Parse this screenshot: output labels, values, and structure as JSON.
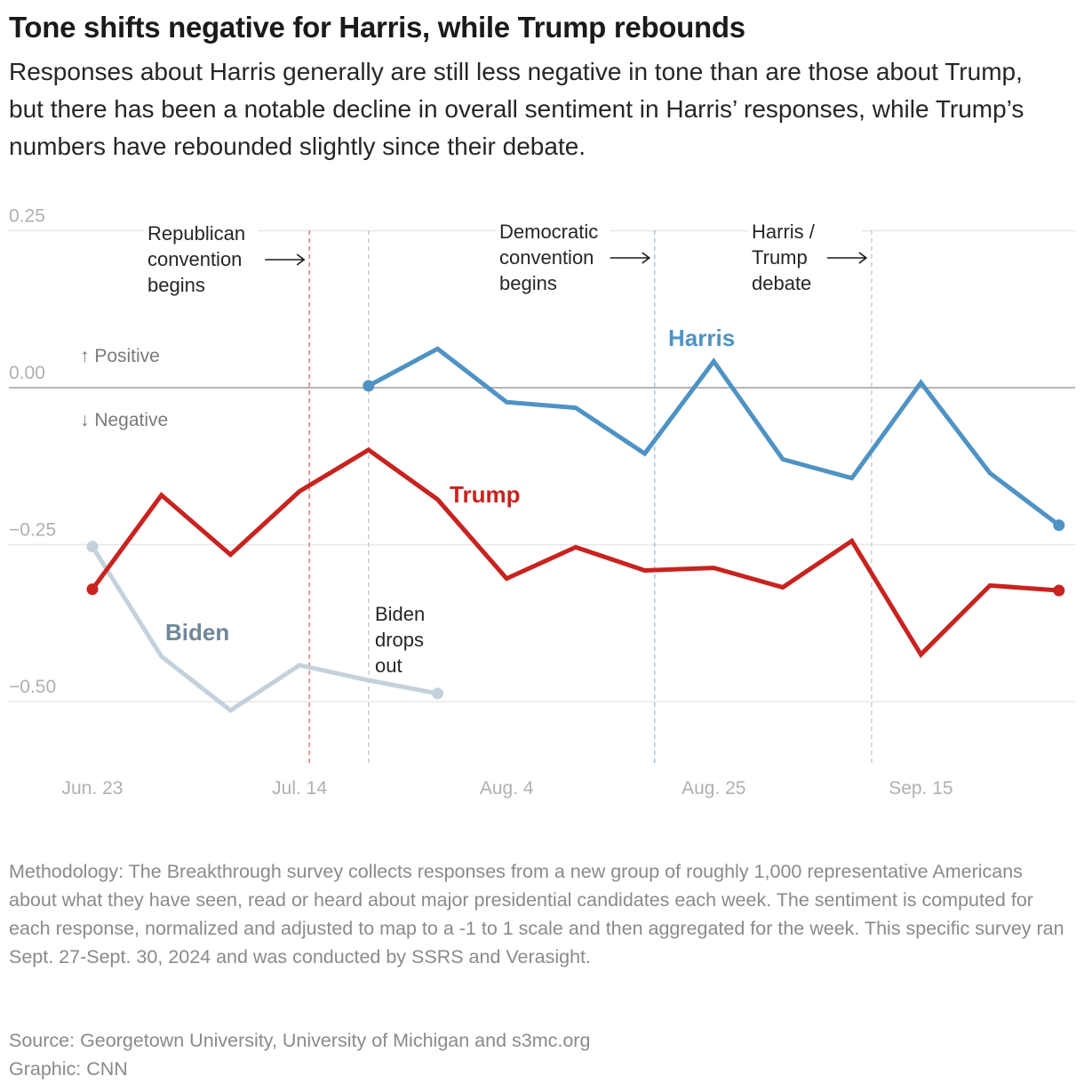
{
  "title": "Tone shifts negative for Harris, while Trump rebounds",
  "subtitle": "Responses about Harris generally are still less negative in tone than are those about Trump, but there has been a notable decline in overall sentiment in Harris’ responses, while Trump’s numbers have rebounded slightly since their debate.",
  "chart_data": {
    "type": "line",
    "ylim": [
      -0.6,
      0.27
    ],
    "y_ticks": [
      0.25,
      0.0,
      -0.25,
      -0.5
    ],
    "y_tick_labels": [
      "0.25",
      "0.00",
      "−0.25",
      "−0.50"
    ],
    "x_tick_dates": [
      "2024-06-23",
      "2024-07-14",
      "2024-08-04",
      "2024-08-25",
      "2024-09-15"
    ],
    "x_tick_labels": [
      "Jun. 23",
      "Jul. 14",
      "Aug. 4",
      "Aug. 25",
      "Sep. 15"
    ],
    "grid": true,
    "direction_labels": {
      "up": "↑ Positive",
      "down": "↓ Negative"
    },
    "series": [
      {
        "name": "Biden",
        "color": "#c3d1db",
        "label_color": "#6f8799",
        "x": [
          "2024-06-23",
          "2024-06-30",
          "2024-07-07",
          "2024-07-14",
          "2024-07-21",
          "2024-07-28"
        ],
        "y": [
          -0.253,
          -0.428,
          -0.514,
          -0.442,
          -0.466,
          -0.487
        ]
      },
      {
        "name": "Trump",
        "color": "#c8231f",
        "label_color": "#c8231f",
        "x": [
          "2024-06-23",
          "2024-06-30",
          "2024-07-07",
          "2024-07-14",
          "2024-07-21",
          "2024-07-28",
          "2024-08-04",
          "2024-08-11",
          "2024-08-18",
          "2024-08-25",
          "2024-09-01",
          "2024-09-08",
          "2024-09-15",
          "2024-09-22",
          "2024-09-29"
        ],
        "y": [
          -0.321,
          -0.171,
          -0.266,
          -0.165,
          -0.099,
          -0.178,
          -0.304,
          -0.254,
          -0.291,
          -0.287,
          -0.318,
          -0.244,
          -0.425,
          -0.315,
          -0.323
        ]
      },
      {
        "name": "Harris",
        "color": "#4f93c5",
        "label_color": "#4f93c5",
        "x": [
          "2024-07-21",
          "2024-07-28",
          "2024-08-04",
          "2024-08-11",
          "2024-08-18",
          "2024-08-25",
          "2024-09-01",
          "2024-09-08",
          "2024-09-15",
          "2024-09-22",
          "2024-09-29"
        ],
        "y": [
          0.003,
          0.062,
          -0.023,
          -0.032,
          -0.105,
          0.042,
          -0.114,
          -0.144,
          0.008,
          -0.136,
          -0.219
        ]
      }
    ],
    "annotations": [
      {
        "date": "2024-07-15",
        "color": "#e07a7a",
        "lines": [
          "Republican",
          "convention",
          "begins"
        ],
        "arrow": true
      },
      {
        "date": "2024-07-21",
        "color": "#cccccc",
        "lines": [
          "Biden",
          "drops",
          "out"
        ],
        "arrow": false
      },
      {
        "date": "2024-08-19",
        "color": "#9cc3e0",
        "lines": [
          "Democratic",
          "convention",
          "begins"
        ],
        "arrow": true
      },
      {
        "date": "2024-09-10",
        "color": "#cccccc",
        "lines": [
          "Harris /",
          "Trump",
          "debate"
        ],
        "arrow": true
      }
    ]
  },
  "methodology": "Methodology: The Breakthrough survey collects responses from a new group of roughly 1,000 representative Americans about what they have seen, read or heard about major presidential candidates each week. The sentiment is computed for each response, normalized and adjusted to map to a -1 to 1 scale and then aggregated for the week. This specific survey ran Sept. 27-Sept. 30, 2024 and was conducted by SSRS and Verasight.",
  "source": "Source: Georgetown University, University of Michigan and s3mc.org",
  "credit": "Graphic: CNN"
}
